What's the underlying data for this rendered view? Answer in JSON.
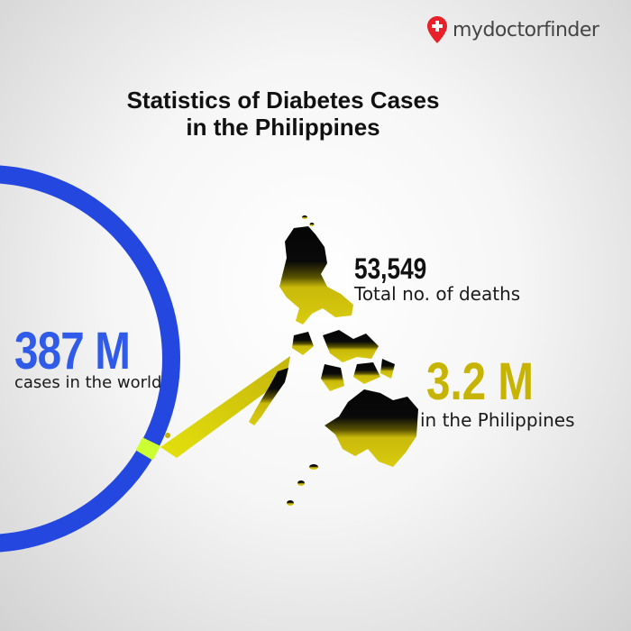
{
  "brand": {
    "part1": "my",
    "part2": "doctor",
    "part3": "finder",
    "pin_color": "#e8202a"
  },
  "title": {
    "line1": "Statistics of Diabetes Cases",
    "line2": "in the Philippines"
  },
  "world": {
    "value": "387 M",
    "label": "cases in the world",
    "color": "#2f5be8"
  },
  "deaths": {
    "value": "53,549",
    "label": "Total no. of deaths"
  },
  "philippines": {
    "value": "3.2 M",
    "label": "in the Philippines",
    "color": "#c6b400"
  },
  "highlight_color": "#ccff33"
}
